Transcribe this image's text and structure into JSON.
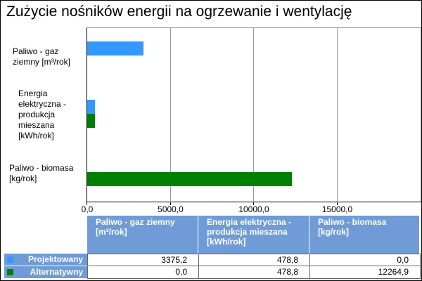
{
  "chart_data": {
    "type": "hbar",
    "title": "Zużycie nośników energii na ogrzewanie i wentylację",
    "categories": [
      "Paliwo - gaz ziemny [m³/rok]",
      "Energia elektryczna - produkcja mieszana [kWh/rok]",
      "Paliwo - biomasa [kg/rok]"
    ],
    "series": [
      {
        "name": "Projektowany",
        "color": "#3399ff",
        "values": [
          3375.2,
          478.8,
          0.0
        ],
        "value_labels": [
          "3375,2",
          "478,8",
          "0,0"
        ]
      },
      {
        "name": "Alternatywny",
        "color": "#008000",
        "values": [
          0.0,
          478.8,
          12264.9
        ],
        "value_labels": [
          "0,0",
          "478,8",
          "12264,9"
        ]
      }
    ],
    "xlim": [
      0,
      20000
    ],
    "xticks": [
      {
        "value": 0,
        "label": "0,0"
      },
      {
        "value": 5000,
        "label": "5000,0"
      },
      {
        "value": 10000,
        "label": "10000,0"
      },
      {
        "value": 15000,
        "label": "15000,0"
      }
    ],
    "grid": true,
    "data_table": true
  }
}
